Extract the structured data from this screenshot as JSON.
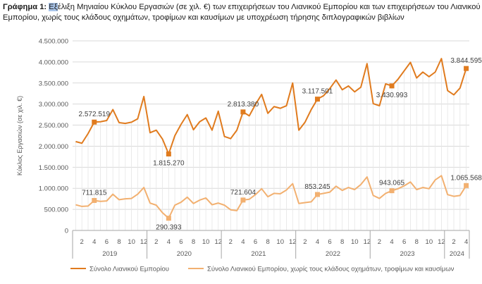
{
  "title": {
    "prefix": "Γράφημα 1:",
    "highlight": "Εξ",
    "text": "έλιξη Μηνιαίου Κύκλου Εργασιών (σε χιλ. €) των επιχειρήσεων του Λιανικού Εμπορίου και των επιχειρήσεων του Λιανικού Εμπορίου, χωρίς τους κλάδους οχημάτων, τροφίμων και καυσίμων με υποχρέωση τήρησης διπλογραφικών βιβλίων"
  },
  "colors": {
    "series1": "#e07b1e",
    "series2": "#f2b070",
    "grid": "#d9d9d9",
    "axis": "#a6a6a6"
  },
  "chart_data": {
    "type": "line",
    "ylabel": "Κύκλος Εργασιών (σε χιλ. €)",
    "ylim": [
      0,
      4500000
    ],
    "yticks": [
      0,
      500000,
      1000000,
      1500000,
      2000000,
      2500000,
      3000000,
      3500000,
      4000000,
      4500000
    ],
    "ytick_labels": [
      "0",
      "500.000",
      "1.000.000",
      "1.500.000",
      "2.000.000",
      "2.500.000",
      "3.000.000",
      "3.500.000",
      "4.000.000",
      "4.500.000"
    ],
    "x_tick_labels": [
      "2",
      "4",
      "6",
      "8",
      "10",
      "12",
      "2",
      "4",
      "6",
      "8",
      "10",
      "12",
      "2",
      "4",
      "6",
      "8",
      "10",
      "12",
      "2",
      "4",
      "6",
      "8",
      "10",
      "12",
      "2",
      "4",
      "6",
      "8",
      "10",
      "12",
      "2",
      "4"
    ],
    "years": [
      "2019",
      "2020",
      "2021",
      "2022",
      "2023",
      "2024"
    ],
    "year_months": [
      12,
      12,
      12,
      12,
      12,
      4
    ],
    "series": [
      {
        "name": "Σύνολο Λιανικού Εμπορίου",
        "values": [
          2110000,
          2070000,
          2300000,
          2572519,
          2580000,
          2610000,
          2870000,
          2560000,
          2540000,
          2570000,
          2650000,
          3180000,
          2320000,
          2380000,
          2170000,
          1815270,
          2250000,
          2520000,
          2750000,
          2390000,
          2580000,
          2670000,
          2380000,
          2830000,
          2230000,
          2180000,
          2380000,
          2813380,
          2720000,
          2990000,
          3230000,
          2780000,
          2940000,
          2900000,
          2960000,
          3500000,
          2380000,
          2570000,
          2870000,
          3117501,
          3200000,
          3370000,
          3570000,
          3340000,
          3430000,
          3290000,
          3400000,
          3960000,
          3010000,
          2960000,
          3480000,
          3430993,
          3590000,
          3790000,
          3990000,
          3620000,
          3760000,
          3650000,
          3760000,
          4080000,
          3320000,
          3220000,
          3380000,
          3844595
        ],
        "labels": [
          {
            "index": 3,
            "text": "2.572.519",
            "pos": "above"
          },
          {
            "index": 15,
            "text": "1.815.270",
            "pos": "below"
          },
          {
            "index": 27,
            "text": "2.813.380",
            "pos": "above"
          },
          {
            "index": 39,
            "text": "3.117.501",
            "pos": "above"
          },
          {
            "index": 51,
            "text": "3.430.993",
            "pos": "below"
          },
          {
            "index": 63,
            "text": "3.844.595",
            "pos": "above"
          }
        ]
      },
      {
        "name": "Σύνολο Λιανικού Εμπορίου, χωρίς τους κλάδους οχημάτων, τροφίμων και καυσίμων",
        "values": [
          610000,
          570000,
          580000,
          711815,
          690000,
          700000,
          860000,
          730000,
          750000,
          760000,
          860000,
          1020000,
          650000,
          600000,
          420000,
          290393,
          600000,
          670000,
          790000,
          640000,
          720000,
          770000,
          610000,
          650000,
          600000,
          490000,
          470000,
          721604,
          740000,
          850000,
          990000,
          800000,
          880000,
          870000,
          960000,
          1110000,
          640000,
          660000,
          680000,
          853245,
          880000,
          910000,
          1050000,
          950000,
          1020000,
          970000,
          1090000,
          1270000,
          830000,
          760000,
          880000,
          943065,
          990000,
          1060000,
          1150000,
          970000,
          1020000,
          990000,
          1200000,
          1300000,
          850000,
          810000,
          830000,
          1065568
        ],
        "labels": [
          {
            "index": 3,
            "text": "711.815",
            "pos": "above"
          },
          {
            "index": 15,
            "text": "290.393",
            "pos": "below"
          },
          {
            "index": 27,
            "text": "721.604",
            "pos": "above"
          },
          {
            "index": 39,
            "text": "853.245",
            "pos": "above"
          },
          {
            "index": 51,
            "text": "943.065",
            "pos": "above"
          },
          {
            "index": 63,
            "text": "1.065.568",
            "pos": "above"
          }
        ]
      }
    ],
    "legend_position": "bottom",
    "grid": true
  }
}
